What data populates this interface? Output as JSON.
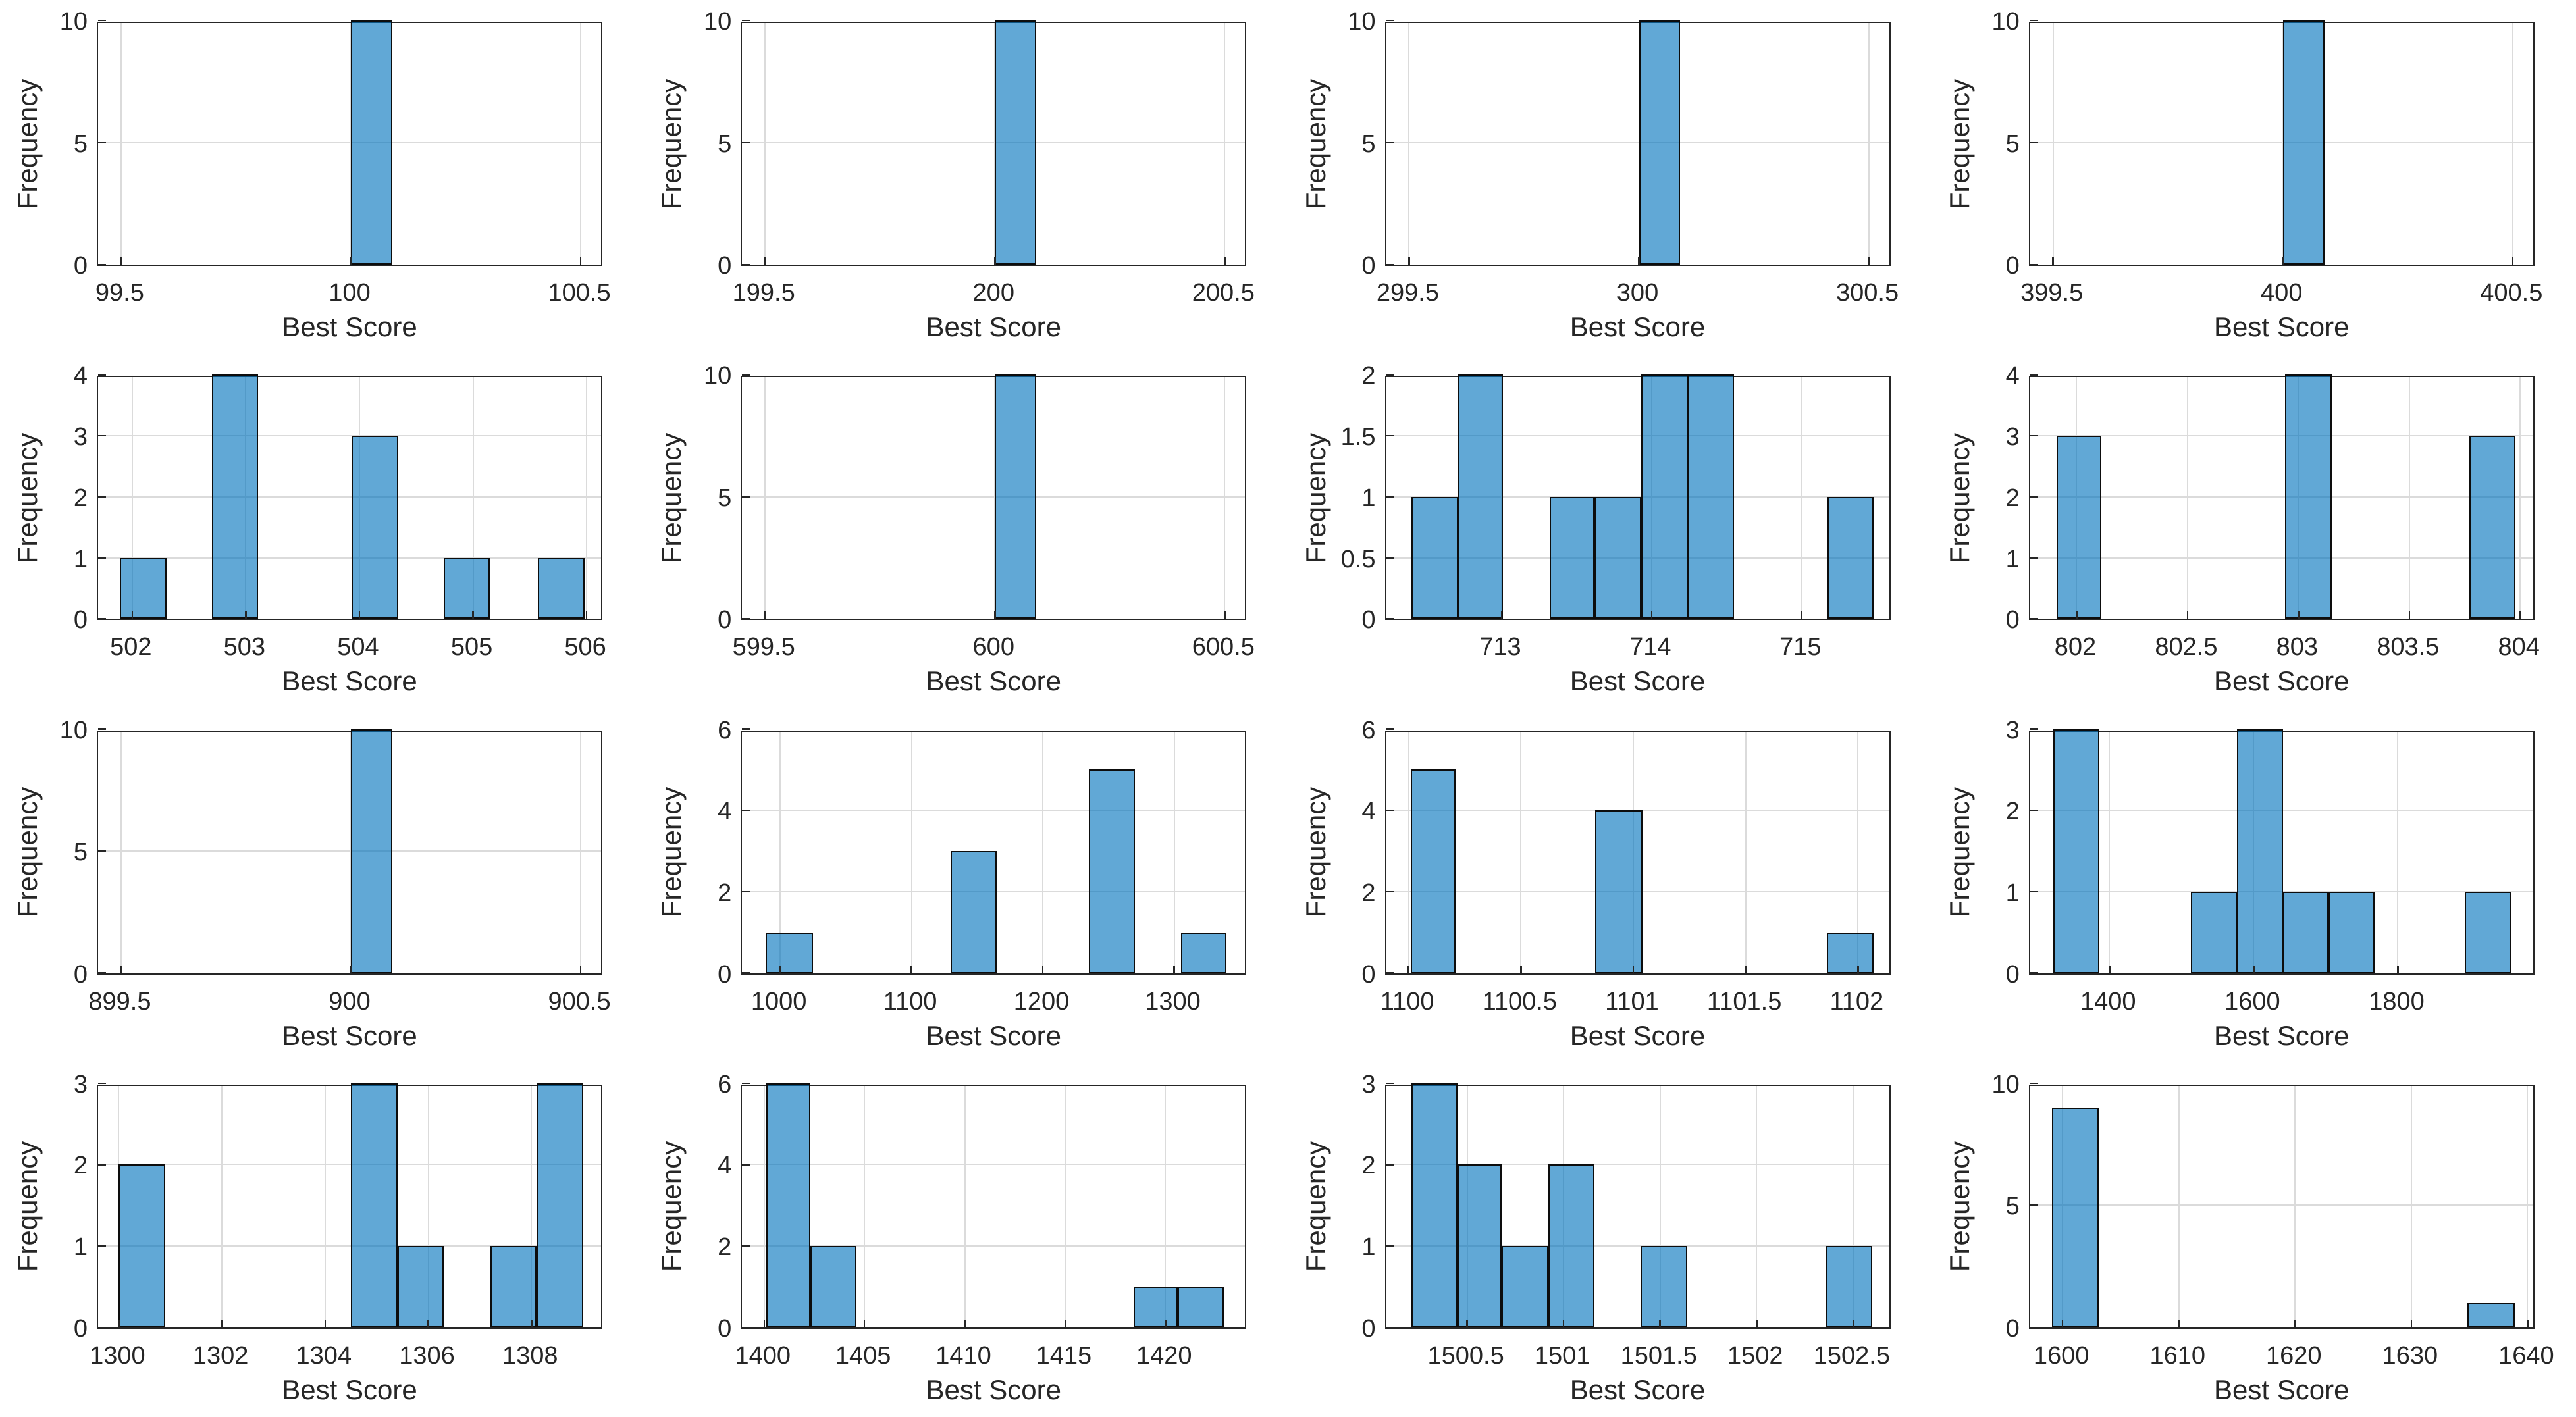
{
  "figure": {
    "xlabel": "Best Score",
    "ylabel": "Frequency",
    "grid": true,
    "rows": 4,
    "cols": 4,
    "colors": {
      "bar_face": "#0072BD",
      "bar_face_alpha": 0.62,
      "bar_face_rendered": "#61A8D6",
      "bar_edge": "#0D0D0D",
      "axis": "#262626",
      "grid": "#DBDBDB",
      "background": "#FFFFFF",
      "text": "#262626"
    }
  },
  "chart_data": [
    {
      "type": "bar",
      "subtype": "histogram",
      "row": 0,
      "col": 0,
      "xlabel": "Best Score",
      "ylabel": "Frequency",
      "xlim": [
        99.45,
        100.55
      ],
      "ylim": [
        0,
        10
      ],
      "xticks": [
        99.5,
        100,
        100.5
      ],
      "xtick_labels": [
        "99.5",
        "100",
        "100.5"
      ],
      "yticks": [
        0,
        5,
        10
      ],
      "ytick_labels": [
        "0",
        "5",
        "10"
      ],
      "bars": [
        {
          "x0": 100.0,
          "x1": 100.09,
          "f": 10
        }
      ]
    },
    {
      "type": "bar",
      "subtype": "histogram",
      "row": 0,
      "col": 1,
      "xlabel": "Best Score",
      "ylabel": "Frequency",
      "xlim": [
        199.45,
        200.55
      ],
      "ylim": [
        0,
        10
      ],
      "xticks": [
        199.5,
        200,
        200.5
      ],
      "xtick_labels": [
        "199.5",
        "200",
        "200.5"
      ],
      "yticks": [
        0,
        5,
        10
      ],
      "ytick_labels": [
        "0",
        "5",
        "10"
      ],
      "bars": [
        {
          "x0": 200.0,
          "x1": 200.09,
          "f": 10
        }
      ]
    },
    {
      "type": "bar",
      "subtype": "histogram",
      "row": 0,
      "col": 2,
      "xlabel": "Best Score",
      "ylabel": "Frequency",
      "xlim": [
        299.45,
        300.55
      ],
      "ylim": [
        0,
        10
      ],
      "xticks": [
        299.5,
        300,
        300.5
      ],
      "xtick_labels": [
        "299.5",
        "300",
        "300.5"
      ],
      "yticks": [
        0,
        5,
        10
      ],
      "ytick_labels": [
        "0",
        "5",
        "10"
      ],
      "bars": [
        {
          "x0": 300.0,
          "x1": 300.09,
          "f": 10
        }
      ]
    },
    {
      "type": "bar",
      "subtype": "histogram",
      "row": 0,
      "col": 3,
      "xlabel": "Best Score",
      "ylabel": "Frequency",
      "xlim": [
        399.45,
        400.55
      ],
      "ylim": [
        0,
        10
      ],
      "xticks": [
        399.5,
        400,
        400.5
      ],
      "xtick_labels": [
        "399.5",
        "400",
        "400.5"
      ],
      "yticks": [
        0,
        5,
        10
      ],
      "ytick_labels": [
        "0",
        "5",
        "10"
      ],
      "bars": [
        {
          "x0": 400.0,
          "x1": 400.09,
          "f": 10
        }
      ]
    },
    {
      "type": "bar",
      "subtype": "histogram",
      "row": 1,
      "col": 0,
      "xlabel": "Best Score",
      "ylabel": "Frequency",
      "xlim": [
        501.7,
        506.15
      ],
      "ylim": [
        0,
        4
      ],
      "xticks": [
        502,
        503,
        504,
        505,
        506
      ],
      "xtick_labels": [
        "502",
        "503",
        "504",
        "505",
        "506"
      ],
      "yticks": [
        0,
        1,
        2,
        3,
        4
      ],
      "ytick_labels": [
        "0",
        "1",
        "2",
        "3",
        "4"
      ],
      "bars": [
        {
          "x0": 501.89,
          "x1": 502.3,
          "f": 1
        },
        {
          "x0": 502.7,
          "x1": 503.11,
          "f": 4
        },
        {
          "x0": 503.93,
          "x1": 504.34,
          "f": 3
        },
        {
          "x0": 504.74,
          "x1": 505.15,
          "f": 1
        },
        {
          "x0": 505.57,
          "x1": 505.98,
          "f": 1
        }
      ]
    },
    {
      "type": "bar",
      "subtype": "histogram",
      "row": 1,
      "col": 1,
      "xlabel": "Best Score",
      "ylabel": "Frequency",
      "xlim": [
        599.45,
        600.55
      ],
      "ylim": [
        0,
        10
      ],
      "xticks": [
        599.5,
        600,
        600.5
      ],
      "xtick_labels": [
        "599.5",
        "600",
        "600.5"
      ],
      "yticks": [
        0,
        5,
        10
      ],
      "ytick_labels": [
        "0",
        "5",
        "10"
      ],
      "bars": [
        {
          "x0": 600.0,
          "x1": 600.09,
          "f": 10
        }
      ]
    },
    {
      "type": "bar",
      "subtype": "histogram",
      "row": 1,
      "col": 2,
      "xlabel": "Best Score",
      "ylabel": "Frequency",
      "xlim": [
        712.23,
        715.6
      ],
      "ylim": [
        0,
        2
      ],
      "xticks": [
        713,
        714,
        715
      ],
      "xtick_labels": [
        "713",
        "714",
        "715"
      ],
      "yticks": [
        0,
        0.5,
        1,
        1.5,
        2
      ],
      "ytick_labels": [
        "0",
        "0.5",
        "1",
        "1.5",
        "2"
      ],
      "bars": [
        {
          "x0": 712.4,
          "x1": 712.71,
          "f": 1
        },
        {
          "x0": 712.71,
          "x1": 713.01,
          "f": 2
        },
        {
          "x0": 713.32,
          "x1": 713.62,
          "f": 1
        },
        {
          "x0": 713.62,
          "x1": 713.93,
          "f": 1
        },
        {
          "x0": 713.93,
          "x1": 714.24,
          "f": 2
        },
        {
          "x0": 714.24,
          "x1": 714.55,
          "f": 2
        },
        {
          "x0": 715.17,
          "x1": 715.48,
          "f": 1
        }
      ]
    },
    {
      "type": "bar",
      "subtype": "histogram",
      "row": 1,
      "col": 3,
      "xlabel": "Best Score",
      "ylabel": "Frequency",
      "xlim": [
        801.79,
        804.07
      ],
      "ylim": [
        0,
        4
      ],
      "xticks": [
        802,
        802.5,
        803,
        803.5,
        804
      ],
      "xtick_labels": [
        "802",
        "802.5",
        "803",
        "803.5",
        "804"
      ],
      "yticks": [
        0,
        1,
        2,
        3,
        4
      ],
      "ytick_labels": [
        "0",
        "1",
        "2",
        "3",
        "4"
      ],
      "bars": [
        {
          "x0": 801.91,
          "x1": 802.11,
          "f": 3
        },
        {
          "x0": 802.94,
          "x1": 803.15,
          "f": 4
        },
        {
          "x0": 803.77,
          "x1": 803.98,
          "f": 3
        }
      ]
    },
    {
      "type": "bar",
      "subtype": "histogram",
      "row": 2,
      "col": 0,
      "xlabel": "Best Score",
      "ylabel": "Frequency",
      "xlim": [
        899.45,
        900.55
      ],
      "ylim": [
        0,
        10
      ],
      "xticks": [
        899.5,
        900,
        900.5
      ],
      "xtick_labels": [
        "899.5",
        "900",
        "900.5"
      ],
      "yticks": [
        0,
        5,
        10
      ],
      "ytick_labels": [
        "0",
        "5",
        "10"
      ],
      "bars": [
        {
          "x0": 900.0,
          "x1": 900.09,
          "f": 10
        }
      ]
    },
    {
      "type": "bar",
      "subtype": "histogram",
      "row": 2,
      "col": 1,
      "xlabel": "Best Score",
      "ylabel": "Frequency",
      "xlim": [
        971,
        1356
      ],
      "ylim": [
        0,
        6
      ],
      "xticks": [
        1000,
        1100,
        1200,
        1300
      ],
      "xtick_labels": [
        "1000",
        "1100",
        "1200",
        "1300"
      ],
      "yticks": [
        0,
        2,
        4,
        6
      ],
      "ytick_labels": [
        "0",
        "2",
        "4",
        "6"
      ],
      "bars": [
        {
          "x0": 989,
          "x1": 1025,
          "f": 1
        },
        {
          "x0": 1130,
          "x1": 1165,
          "f": 3
        },
        {
          "x0": 1235,
          "x1": 1270,
          "f": 5
        },
        {
          "x0": 1305,
          "x1": 1340,
          "f": 1
        }
      ]
    },
    {
      "type": "bar",
      "subtype": "histogram",
      "row": 2,
      "col": 2,
      "xlabel": "Best Score",
      "ylabel": "Frequency",
      "xlim": [
        1099.9,
        1102.15
      ],
      "ylim": [
        0,
        6
      ],
      "xticks": [
        1100,
        1100.5,
        1101,
        1101.5,
        1102
      ],
      "xtick_labels": [
        "1100",
        "1100.5",
        "1101",
        "1101.5",
        "1102"
      ],
      "yticks": [
        0,
        2,
        4,
        6
      ],
      "ytick_labels": [
        "0",
        "2",
        "4",
        "6"
      ],
      "bars": [
        {
          "x0": 1100.01,
          "x1": 1100.21,
          "f": 5
        },
        {
          "x0": 1100.83,
          "x1": 1101.04,
          "f": 4
        },
        {
          "x0": 1101.86,
          "x1": 1102.07,
          "f": 1
        }
      ]
    },
    {
      "type": "bar",
      "subtype": "histogram",
      "row": 2,
      "col": 3,
      "xlabel": "Best Score",
      "ylabel": "Frequency",
      "xlim": [
        1290,
        1991
      ],
      "ylim": [
        0,
        3
      ],
      "xticks": [
        1400,
        1600,
        1800
      ],
      "xtick_labels": [
        "1400",
        "1600",
        "1800"
      ],
      "yticks": [
        0,
        1,
        2,
        3
      ],
      "ytick_labels": [
        "0",
        "1",
        "2",
        "3"
      ],
      "bars": [
        {
          "x0": 1322,
          "x1": 1386,
          "f": 3
        },
        {
          "x0": 1513,
          "x1": 1577,
          "f": 1
        },
        {
          "x0": 1577,
          "x1": 1641,
          "f": 3
        },
        {
          "x0": 1641,
          "x1": 1704,
          "f": 1
        },
        {
          "x0": 1704,
          "x1": 1768,
          "f": 1
        },
        {
          "x0": 1893,
          "x1": 1957,
          "f": 1
        }
      ]
    },
    {
      "type": "bar",
      "subtype": "histogram",
      "row": 3,
      "col": 0,
      "xlabel": "Best Score",
      "ylabel": "Frequency",
      "xlim": [
        1299.6,
        1309.4
      ],
      "ylim": [
        0,
        3
      ],
      "xticks": [
        1300,
        1302,
        1304,
        1306,
        1308
      ],
      "xtick_labels": [
        "1300",
        "1302",
        "1304",
        "1306",
        "1308"
      ],
      "yticks": [
        0,
        1,
        2,
        3
      ],
      "ytick_labels": [
        "0",
        "1",
        "2",
        "3"
      ],
      "bars": [
        {
          "x0": 1300.0,
          "x1": 1300.9,
          "f": 2
        },
        {
          "x0": 1304.5,
          "x1": 1305.4,
          "f": 3
        },
        {
          "x0": 1305.4,
          "x1": 1306.3,
          "f": 1
        },
        {
          "x0": 1307.2,
          "x1": 1308.1,
          "f": 1
        },
        {
          "x0": 1308.1,
          "x1": 1309.0,
          "f": 3
        }
      ]
    },
    {
      "type": "bar",
      "subtype": "histogram",
      "row": 3,
      "col": 1,
      "xlabel": "Best Score",
      "ylabel": "Frequency",
      "xlim": [
        1398.9,
        1424.1
      ],
      "ylim": [
        0,
        6
      ],
      "xticks": [
        1400,
        1405,
        1410,
        1415,
        1420
      ],
      "xtick_labels": [
        "1400",
        "1405",
        "1410",
        "1415",
        "1420"
      ],
      "yticks": [
        0,
        2,
        4,
        6
      ],
      "ytick_labels": [
        "0",
        "2",
        "4",
        "6"
      ],
      "bars": [
        {
          "x0": 1400.1,
          "x1": 1402.3,
          "f": 6
        },
        {
          "x0": 1402.3,
          "x1": 1404.6,
          "f": 2
        },
        {
          "x0": 1418.4,
          "x1": 1420.6,
          "f": 1
        },
        {
          "x0": 1420.6,
          "x1": 1422.9,
          "f": 1
        }
      ]
    },
    {
      "type": "bar",
      "subtype": "histogram",
      "row": 3,
      "col": 2,
      "xlabel": "Best Score",
      "ylabel": "Frequency",
      "xlim": [
        1500.08,
        1502.7
      ],
      "ylim": [
        0,
        3
      ],
      "xticks": [
        1500.5,
        1501,
        1501.5,
        1502,
        1502.5
      ],
      "xtick_labels": [
        "1500.5",
        "1501",
        "1501.5",
        "1502",
        "1502.5"
      ],
      "yticks": [
        0,
        1,
        2,
        3
      ],
      "ytick_labels": [
        "0",
        "1",
        "2",
        "3"
      ],
      "bars": [
        {
          "x0": 1500.21,
          "x1": 1500.45,
          "f": 3
        },
        {
          "x0": 1500.45,
          "x1": 1500.68,
          "f": 2
        },
        {
          "x0": 1500.68,
          "x1": 1500.92,
          "f": 1
        },
        {
          "x0": 1500.92,
          "x1": 1501.16,
          "f": 2
        },
        {
          "x0": 1501.4,
          "x1": 1501.64,
          "f": 1
        },
        {
          "x0": 1502.36,
          "x1": 1502.6,
          "f": 1
        }
      ]
    },
    {
      "type": "bar",
      "subtype": "histogram",
      "row": 3,
      "col": 3,
      "xlabel": "Best Score",
      "ylabel": "Frequency",
      "xlim": [
        1597.2,
        1640.7
      ],
      "ylim": [
        0,
        10
      ],
      "xticks": [
        1600,
        1610,
        1620,
        1630,
        1640
      ],
      "xtick_labels": [
        "1600",
        "1610",
        "1620",
        "1630",
        "1640"
      ],
      "yticks": [
        0,
        5,
        10
      ],
      "ytick_labels": [
        "0",
        "5",
        "10"
      ],
      "bars": [
        {
          "x0": 1599.1,
          "x1": 1603.1,
          "f": 9
        },
        {
          "x0": 1634.8,
          "x1": 1638.9,
          "f": 1
        }
      ]
    }
  ]
}
